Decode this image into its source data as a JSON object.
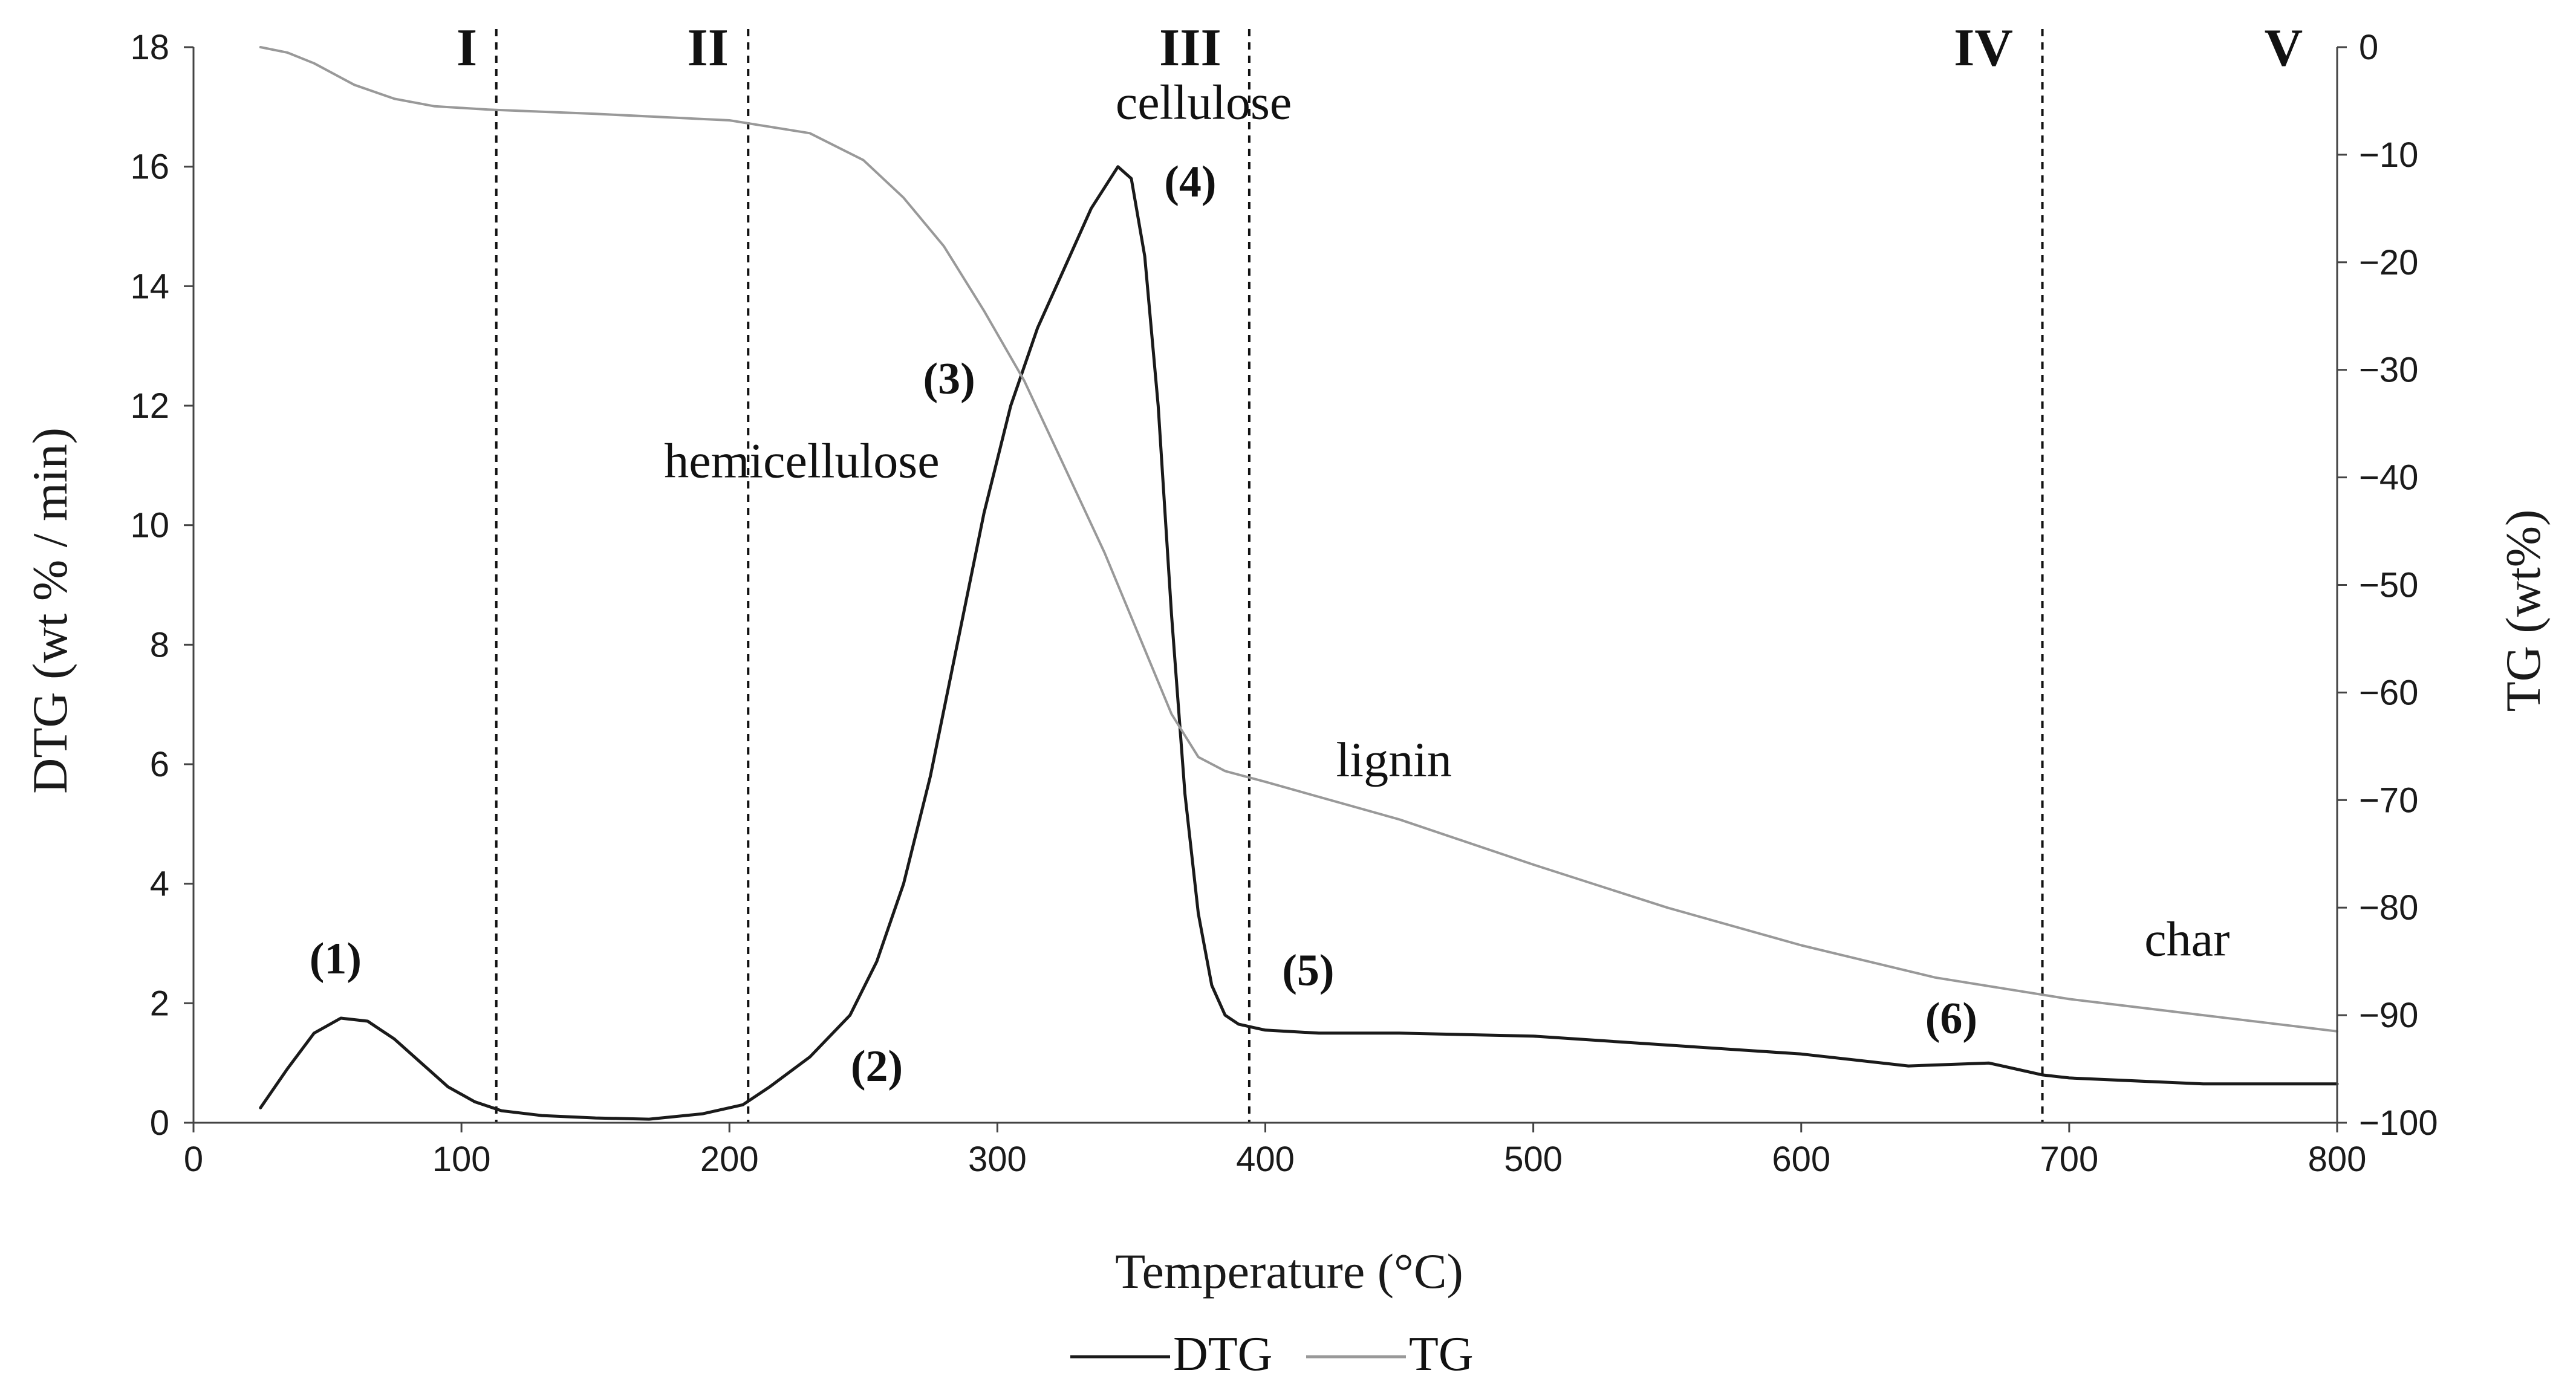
{
  "chart_data": {
    "type": "line",
    "xlabel": "Temperature (°C)",
    "ylabel_left": "DTG (wt % / min)",
    "ylabel_right": "TG (wt%)",
    "xlim": [
      0,
      800
    ],
    "ylim_left": [
      0,
      18
    ],
    "ylim_right": [
      -100,
      0
    ],
    "x_ticks": [
      0,
      100,
      200,
      300,
      400,
      500,
      600,
      700,
      800
    ],
    "y_ticks_left": [
      0,
      2,
      4,
      6,
      8,
      10,
      12,
      14,
      16,
      18
    ],
    "y_ticks_right": [
      0,
      -10,
      -20,
      -30,
      -40,
      -50,
      -60,
      -70,
      -80,
      -90,
      -100
    ],
    "series": [
      {
        "name": "DTG",
        "axis": "left",
        "color": "#1a1a1a",
        "x": [
          25,
          35,
          45,
          55,
          65,
          75,
          85,
          95,
          105,
          115,
          130,
          150,
          170,
          190,
          205,
          215,
          230,
          245,
          255,
          265,
          275,
          285,
          295,
          305,
          315,
          325,
          335,
          345,
          350,
          355,
          360,
          365,
          370,
          375,
          380,
          385,
          390,
          395,
          400,
          420,
          450,
          500,
          550,
          600,
          640,
          670,
          680,
          690,
          700,
          750,
          800
        ],
        "y": [
          0.25,
          0.9,
          1.5,
          1.75,
          1.7,
          1.4,
          1.0,
          0.6,
          0.35,
          0.2,
          0.12,
          0.08,
          0.06,
          0.15,
          0.3,
          0.6,
          1.1,
          1.8,
          2.7,
          4.0,
          5.8,
          8.0,
          10.2,
          12.0,
          13.3,
          14.3,
          15.3,
          16.0,
          15.8,
          14.5,
          12.0,
          8.5,
          5.5,
          3.5,
          2.3,
          1.8,
          1.65,
          1.6,
          1.55,
          1.5,
          1.5,
          1.45,
          1.3,
          1.15,
          0.95,
          1.0,
          0.9,
          0.8,
          0.75,
          0.65,
          0.65
        ]
      },
      {
        "name": "TG",
        "axis": "right",
        "color": "#999999",
        "x": [
          25,
          35,
          45,
          60,
          75,
          90,
          110,
          150,
          200,
          230,
          250,
          265,
          280,
          295,
          310,
          325,
          340,
          355,
          365,
          375,
          385,
          400,
          450,
          500,
          550,
          600,
          650,
          700,
          750,
          800
        ],
        "y": [
          0,
          -0.5,
          -1.5,
          -3.5,
          -4.8,
          -5.5,
          -5.8,
          -6.2,
          -6.8,
          -8.0,
          -10.5,
          -14.0,
          -18.5,
          -24.5,
          -31.0,
          -39.0,
          -47.0,
          -56.0,
          -62.0,
          -66.0,
          -67.3,
          -68.3,
          -71.8,
          -76.0,
          -80.0,
          -83.5,
          -86.5,
          -88.5,
          -90.0,
          -91.5
        ]
      }
    ],
    "vertical_lines": [
      {
        "x": 113,
        "label": "I",
        "label_x": 102
      },
      {
        "x": 207,
        "label": "II",
        "label_x": 192
      },
      {
        "x": 394,
        "label": "III",
        "label_x": 372
      },
      {
        "x": 690,
        "label": "IV",
        "label_x": 668
      },
      {
        "x": null,
        "label": "V",
        "label_x": 780
      }
    ],
    "peak_annotations": [
      {
        "label": "(1)",
        "x": 53,
        "y": 2.5
      },
      {
        "label": "(2)",
        "x": 255,
        "y": 0.7
      },
      {
        "label": "(3)",
        "x": 282,
        "y": 12.2
      },
      {
        "label": "(4)",
        "x": 372,
        "y": 15.5
      },
      {
        "label": "(5)",
        "x": 416,
        "y": 2.3
      },
      {
        "label": "(6)",
        "x": 656,
        "y": 1.5
      }
    ],
    "component_annotations": [
      {
        "label": "hemicellulose",
        "x": 227,
        "y": 10.8
      },
      {
        "label": "cellulose",
        "x": 377,
        "y": 16.8
      },
      {
        "label": "lignin",
        "x": 448,
        "y": 5.8
      },
      {
        "label": "char",
        "x": 744,
        "y": 2.8
      }
    ],
    "legend": [
      "DTG",
      "TG"
    ],
    "legend_position": "bottom-center"
  }
}
